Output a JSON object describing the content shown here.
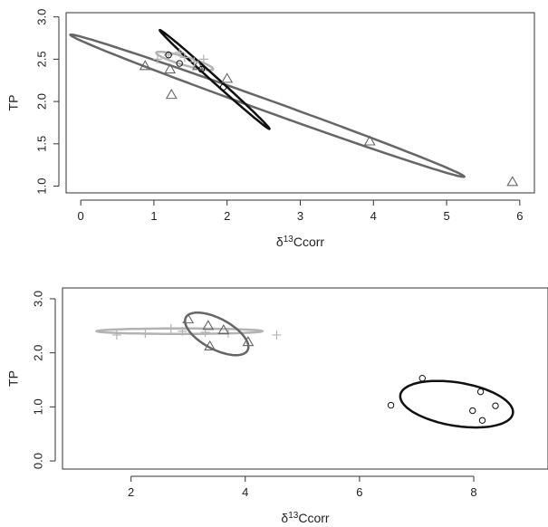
{
  "colors": {
    "black": "#111111",
    "dark_gray": "#666666",
    "light_gray": "#b3b3b3",
    "axis": "#333333"
  },
  "chart_data": [
    {
      "type": "scatter",
      "panel": "top",
      "xlabel": "δ13Ccorr",
      "xlabel_parts": {
        "base": "δ",
        "sup": "13",
        "rest": "Ccorr"
      },
      "ylabel": "TP",
      "xlim": [
        -0.2,
        6.2
      ],
      "ylim": [
        0.92,
        3.05
      ],
      "x_ticks": [
        0,
        1,
        2,
        3,
        4,
        5,
        6
      ],
      "x_tick_labels": [
        "0",
        "1",
        "2",
        "3",
        "4",
        "5",
        "6"
      ],
      "y_ticks": [
        1.0,
        1.5,
        2.0,
        2.5,
        3.0
      ],
      "y_tick_labels": [
        "1.0",
        "1.5",
        "2.0",
        "2.5",
        "3.0"
      ],
      "grid": false,
      "series": [
        {
          "marker": "triangle",
          "color": "dark_gray",
          "points": [
            [
              0.88,
              2.42
            ],
            [
              1.22,
              2.38
            ],
            [
              1.24,
              2.08
            ],
            [
              1.6,
              2.42
            ],
            [
              2.0,
              2.27
            ],
            [
              3.95,
              1.53
            ],
            [
              5.9,
              1.05
            ]
          ]
        },
        {
          "marker": "plus",
          "color": "light_gray",
          "points": [
            [
              1.05,
              2.5
            ],
            [
              1.2,
              2.55
            ],
            [
              1.35,
              2.58
            ],
            [
              1.42,
              2.52
            ],
            [
              1.55,
              2.47
            ],
            [
              1.68,
              2.5
            ]
          ]
        },
        {
          "marker": "circle",
          "color": "black",
          "points": [
            [
              1.2,
              2.55
            ],
            [
              1.35,
              2.45
            ],
            [
              1.65,
              2.38
            ],
            [
              1.95,
              2.17
            ]
          ]
        }
      ],
      "ellipses": [
        {
          "color": "dark_gray",
          "center": [
            2.55,
            1.95
          ],
          "a": 2.82,
          "b": 0.07,
          "angle_deg": -17.3
        },
        {
          "color": "light_gray",
          "center": [
            1.42,
            2.48
          ],
          "a": 0.4,
          "b": 0.05,
          "angle_deg": -14
        },
        {
          "color": "black",
          "center": [
            1.83,
            2.26
          ],
          "a": 0.95,
          "b": 0.035,
          "angle_deg": -37.9
        }
      ]
    },
    {
      "type": "scatter",
      "panel": "bottom",
      "xlabel": "δ13Ccorr",
      "xlabel_parts": {
        "base": "δ",
        "sup": "13",
        "rest": "Ccorr"
      },
      "ylabel": "TP",
      "xlim": [
        0.8,
        9.3
      ],
      "ylim": [
        -0.15,
        3.2
      ],
      "x_ticks": [
        2,
        4,
        6,
        8
      ],
      "x_tick_labels": [
        "2",
        "4",
        "6",
        "8"
      ],
      "y_ticks": [
        0.0,
        1.0,
        2.0,
        3.0
      ],
      "y_tick_labels": [
        "0.0",
        "1.0",
        "2.0",
        "3.0"
      ],
      "grid": false,
      "series": [
        {
          "marker": "plus",
          "color": "light_gray",
          "points": [
            [
              1.75,
              2.33
            ],
            [
              2.25,
              2.36
            ],
            [
              2.7,
              2.45
            ],
            [
              2.9,
              2.4
            ],
            [
              3.3,
              2.38
            ],
            [
              3.7,
              2.36
            ],
            [
              4.55,
              2.33
            ]
          ]
        },
        {
          "marker": "triangle",
          "color": "dark_gray",
          "points": [
            [
              3.0,
              2.62
            ],
            [
              3.35,
              2.5
            ],
            [
              3.38,
              2.12
            ],
            [
              3.62,
              2.42
            ],
            [
              4.05,
              2.2
            ]
          ]
        },
        {
          "marker": "circle",
          "color": "black",
          "points": [
            [
              6.55,
              1.03
            ],
            [
              7.1,
              1.53
            ],
            [
              7.98,
              0.93
            ],
            [
              8.12,
              1.28
            ],
            [
              8.15,
              0.75
            ],
            [
              8.38,
              1.02
            ]
          ]
        }
      ],
      "ellipses": [
        {
          "color": "light_gray",
          "center": [
            2.85,
            2.4
          ],
          "a": 1.45,
          "b": 0.05,
          "angle_deg": 0
        },
        {
          "color": "dark_gray",
          "center": [
            3.5,
            2.35
          ],
          "a": 0.62,
          "b": 0.28,
          "angle_deg": -30
        },
        {
          "color": "black",
          "center": [
            7.7,
            1.05
          ],
          "a": 1.0,
          "b": 0.4,
          "angle_deg": -10
        }
      ]
    }
  ]
}
